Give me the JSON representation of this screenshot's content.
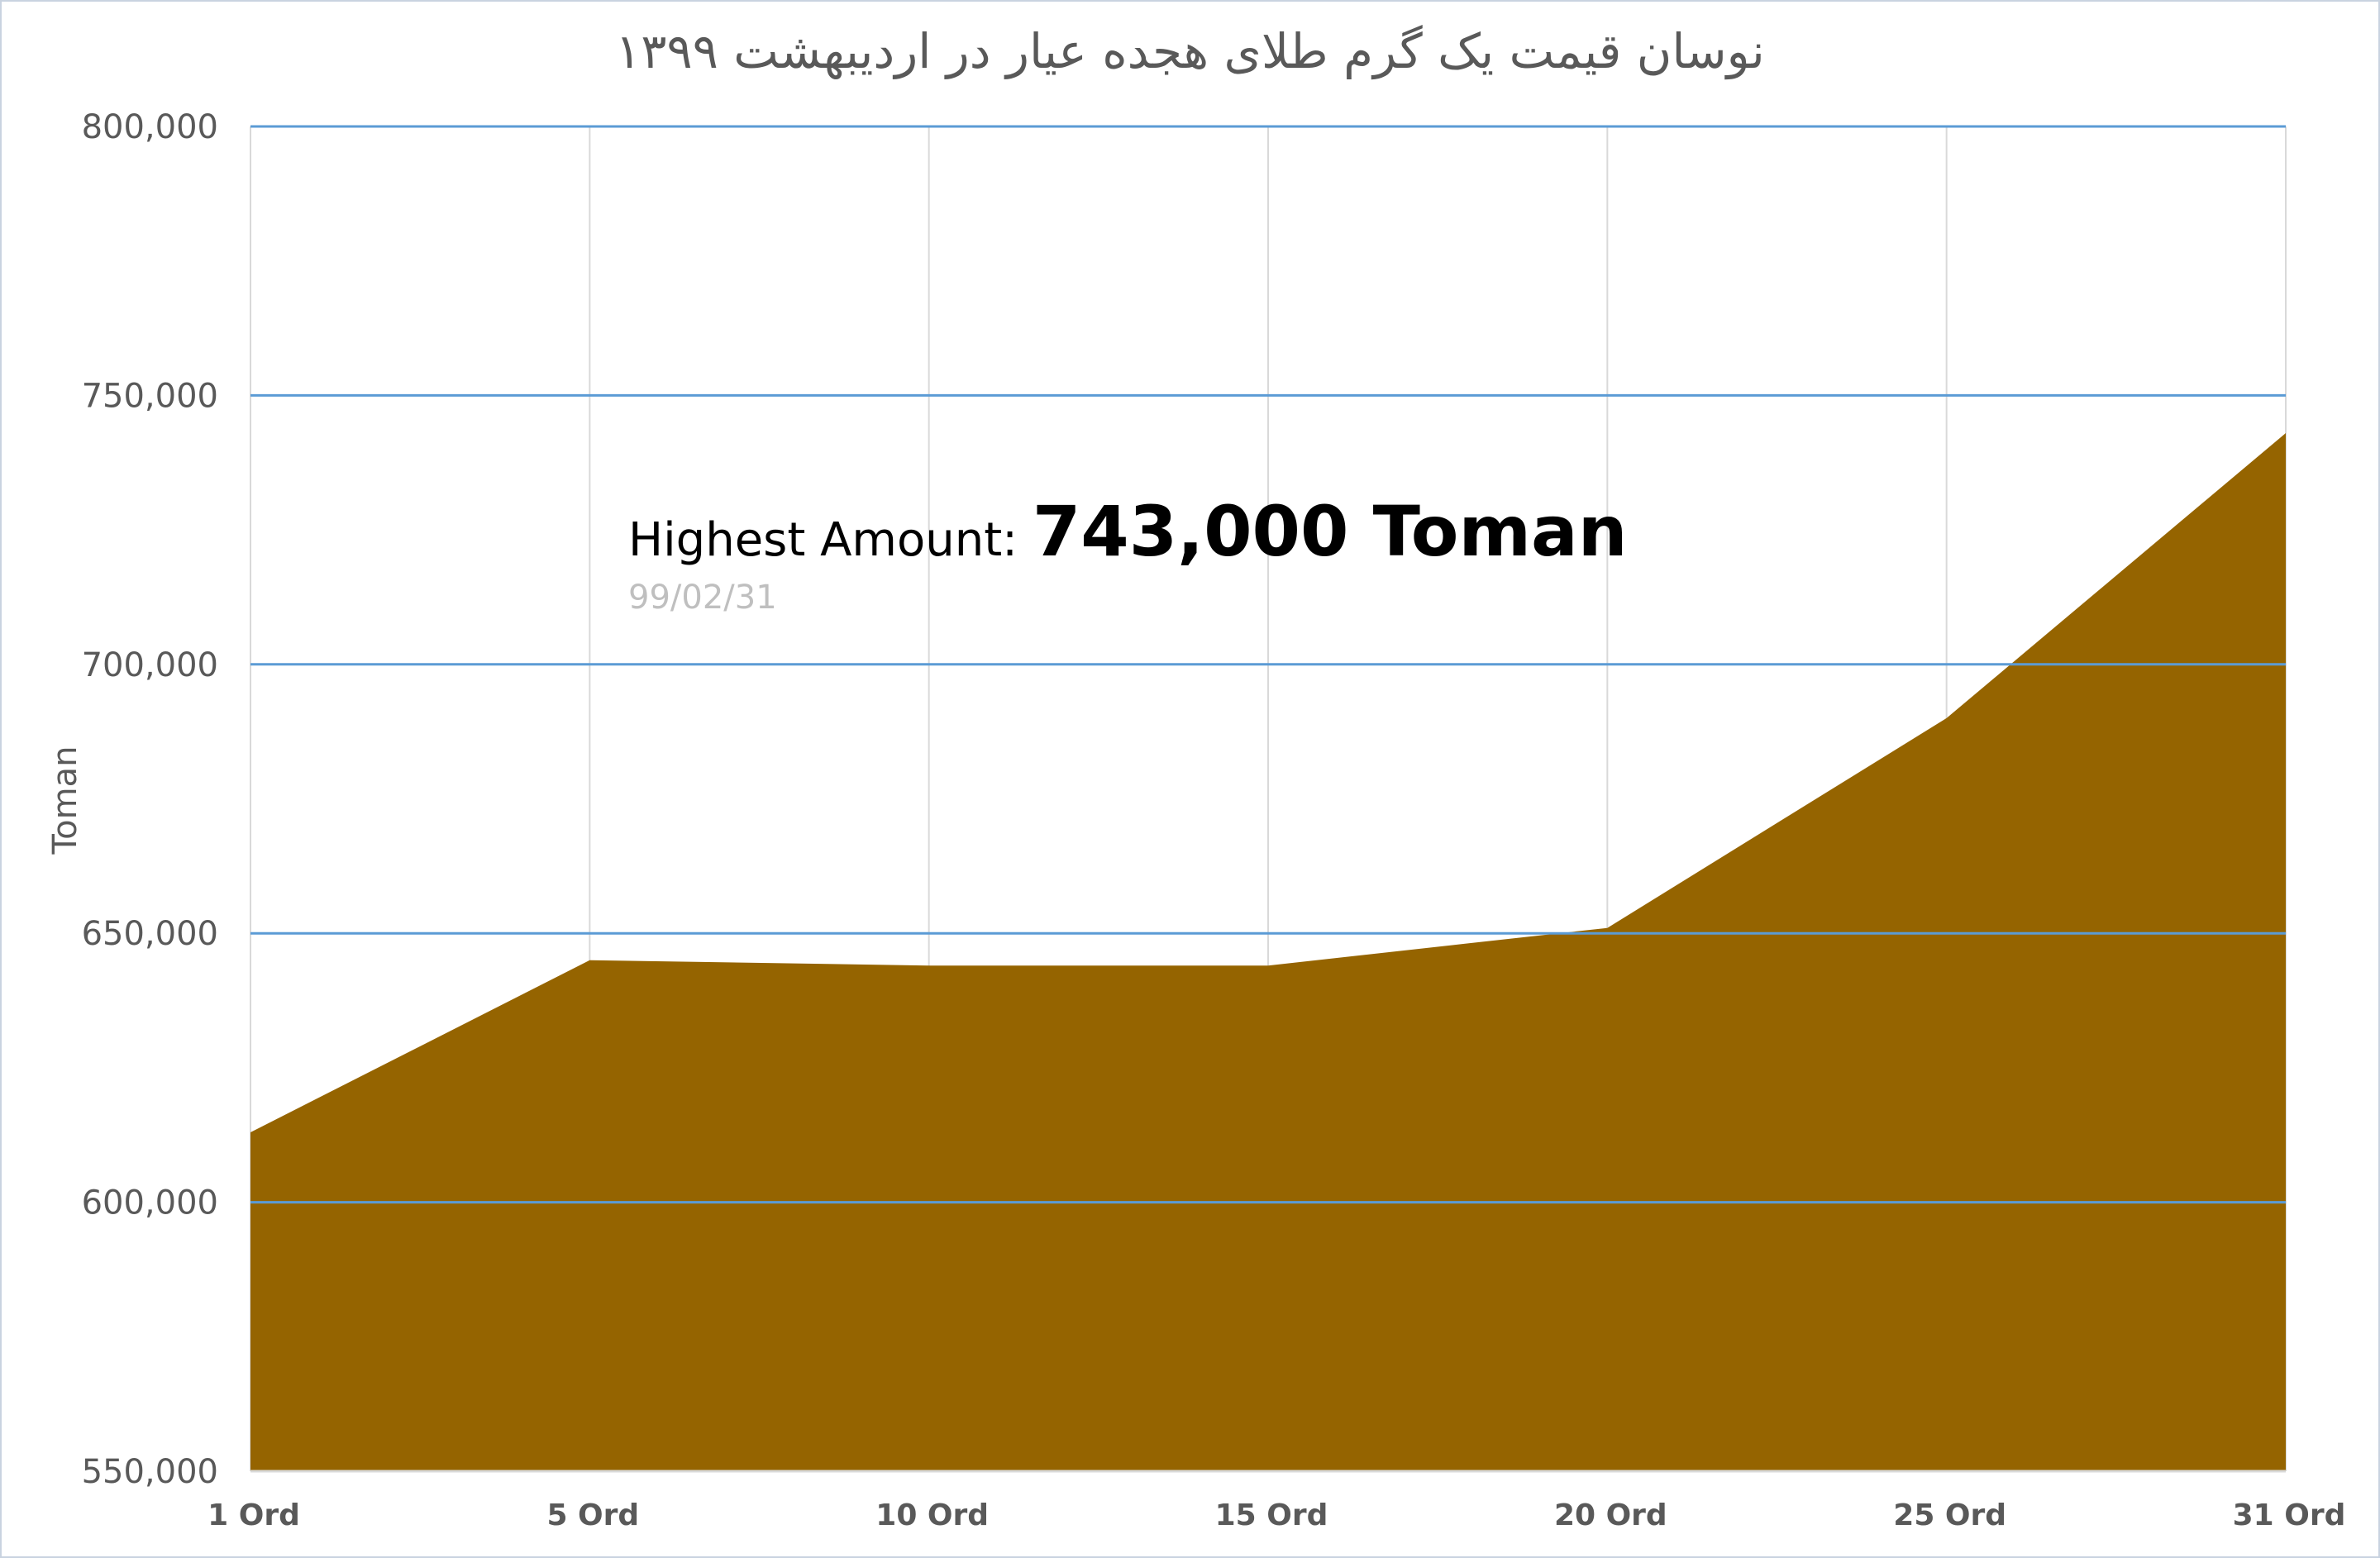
{
  "chart_data": {
    "type": "area",
    "title": "نوسان قیمت یک گرم طلای هجده عیار در اردیبهشت ۱۳۹۹",
    "ylabel": "Toman",
    "ylim": [
      550000,
      800000
    ],
    "yticks": [
      "550,000",
      "600,000",
      "650,000",
      "700,000",
      "750,000",
      "800,000"
    ],
    "ytick_values": [
      550000,
      600000,
      650000,
      700000,
      750000,
      800000
    ],
    "categories": [
      "1 Ord",
      "5 Ord",
      "10 Ord",
      "15 Ord",
      "20 Ord",
      "25 Ord",
      "31 Ord"
    ],
    "values": [
      613000,
      645000,
      644000,
      644000,
      651000,
      690000,
      743000
    ],
    "grid": true,
    "annotation": {
      "prefix": "Highest Amount: ",
      "value": "743,000 Toman",
      "date": "99/02/31"
    },
    "colors": {
      "area": "#956400",
      "hgrid": "#5b9bd5",
      "vgrid": "#d9d9d9",
      "axis": "#d9d9d9"
    }
  }
}
